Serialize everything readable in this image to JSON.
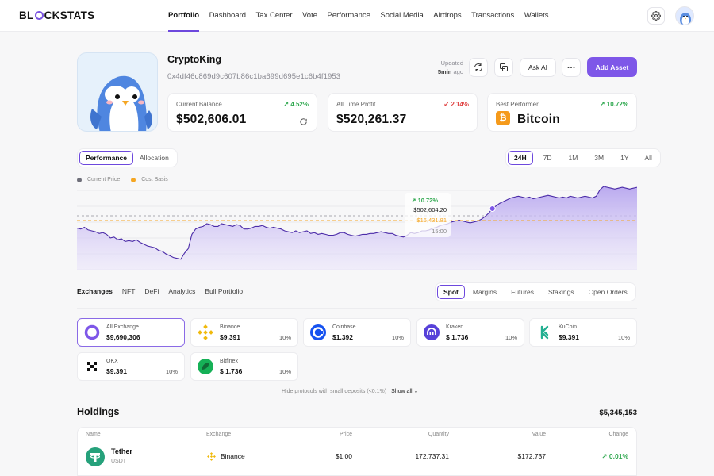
{
  "brand": {
    "name_pre": "BL",
    "name_post": "CKSTATS"
  },
  "nav": {
    "links": [
      "Portfolio",
      "Dashboard",
      "Tax Center",
      "Vote",
      "Performance",
      "Social Media",
      "Airdrops",
      "Transactions",
      "Wallets"
    ],
    "active": "Portfolio"
  },
  "profile": {
    "name": "CryptoKing",
    "address": "0x4df46c869d9c607b86c1ba699d695e1c6b4f1953",
    "updated_label": "Updated",
    "updated_value": "5min",
    "updated_suffix": "ago",
    "ask_ai": "Ask AI",
    "add_asset": "Add Asset"
  },
  "stats": [
    {
      "label": "Current Balance",
      "value": "$502,606.01",
      "pct": "4.52%",
      "dir": "up"
    },
    {
      "label": "All Time Profit",
      "value": "$520,261.37",
      "pct": "2.14%",
      "dir": "down"
    },
    {
      "label": "Best Performer",
      "value": "Bitcoin",
      "pct": "10.72%",
      "dir": "up"
    }
  ],
  "chart_controls": {
    "view_tabs": [
      "Performance",
      "Allocation"
    ],
    "view_active": "Performance",
    "ranges": [
      "24H",
      "7D",
      "1M",
      "3M",
      "1Y",
      "All"
    ],
    "range_active": "24H",
    "legend": [
      {
        "name": "Current Price",
        "color": "#6f6f7a"
      },
      {
        "name": "Cost Basis",
        "color": "#f5a623"
      }
    ]
  },
  "chart_data": {
    "type": "area",
    "series": [
      {
        "name": "Current Price",
        "values": [
          45,
          44,
          46,
          43,
          42,
          41,
          39,
          40,
          38,
          34,
          35,
          32,
          33,
          30,
          31,
          30,
          32,
          29,
          27,
          25,
          24,
          23,
          20,
          19,
          16,
          14,
          12,
          11,
          10,
          17,
          22,
          38,
          44,
          46,
          47,
          50,
          49,
          47,
          47,
          50,
          49,
          48,
          47,
          49,
          48,
          44,
          44,
          45,
          47,
          47,
          48,
          46,
          45,
          46,
          45,
          44,
          42,
          41,
          40,
          42,
          40,
          41,
          42,
          39,
          40,
          38,
          39,
          38,
          37,
          37,
          38,
          40,
          40,
          38,
          37,
          36,
          37,
          38,
          38,
          39,
          39,
          40,
          41,
          40,
          39,
          39,
          37,
          36,
          35,
          37,
          40,
          39,
          40,
          42,
          42,
          43,
          45,
          46,
          48,
          49,
          50,
          52,
          53,
          54,
          53,
          52,
          51,
          52,
          53,
          55,
          58,
          62,
          67,
          70,
          73,
          75,
          77,
          79,
          80,
          81,
          80,
          79,
          80,
          78,
          79,
          80,
          81,
          82,
          81,
          80,
          79,
          80,
          79,
          81,
          80,
          79,
          80,
          81,
          80,
          79,
          81,
          88,
          92,
          91,
          90,
          89,
          90,
          91,
          90,
          89,
          90,
          91
        ]
      }
    ],
    "cost_basis": 16431.81,
    "tooltip": {
      "pct": "10.72%",
      "value": "$502,604.20",
      "cost": "$16,431.81",
      "time": "15:00"
    }
  },
  "asset_tabs": {
    "left": [
      "Exchanges",
      "NFT",
      "DeFi",
      "Analytics",
      "Bull Portfolio"
    ],
    "left_active": "Exchanges",
    "right": [
      "Spot",
      "Margins",
      "Futures",
      "Stakings",
      "Open Orders"
    ],
    "right_active": "Spot"
  },
  "exchanges": [
    {
      "name": "All Exchange",
      "value": "$9,690,306",
      "pct": "",
      "icon": "all-exchange-icon",
      "color": "#7e57e8"
    },
    {
      "name": "Binance",
      "value": "$9.391",
      "pct": "10%",
      "icon": "binance-icon",
      "color": "#f0b90b"
    },
    {
      "name": "Coinbase",
      "value": "$1.392",
      "pct": "10%",
      "icon": "coinbase-icon",
      "color": "#1652f0"
    },
    {
      "name": "Kraken",
      "value": "$ 1.736",
      "pct": "10%",
      "icon": "kraken-icon",
      "color": "#5741d9"
    },
    {
      "name": "KuCoin",
      "value": "$9.391",
      "pct": "10%",
      "icon": "kucoin-icon",
      "color": "#23af91"
    },
    {
      "name": "OKX",
      "value": "$9.391",
      "pct": "10%",
      "icon": "okx-icon",
      "color": "#111111"
    },
    {
      "name": "Bitfinex",
      "value": "$ 1.736",
      "pct": "10%",
      "icon": "bitfinex-icon",
      "color": "#16b157"
    }
  ],
  "hide_protocols": "Hide protocols with small deposits (<0.1%)",
  "show_all": "Show all",
  "holdings": {
    "title": "Holdings",
    "total": "$5,345,153",
    "columns": [
      "Name",
      "Exchange",
      "Price",
      "Quantity",
      "Value",
      "Change"
    ],
    "rows": [
      {
        "name": "Tether",
        "symbol": "USDT",
        "exchange": "Binance",
        "price": "$1.00",
        "quantity": "172,737.31",
        "value": "$172,737",
        "change": "0.01%"
      }
    ]
  }
}
